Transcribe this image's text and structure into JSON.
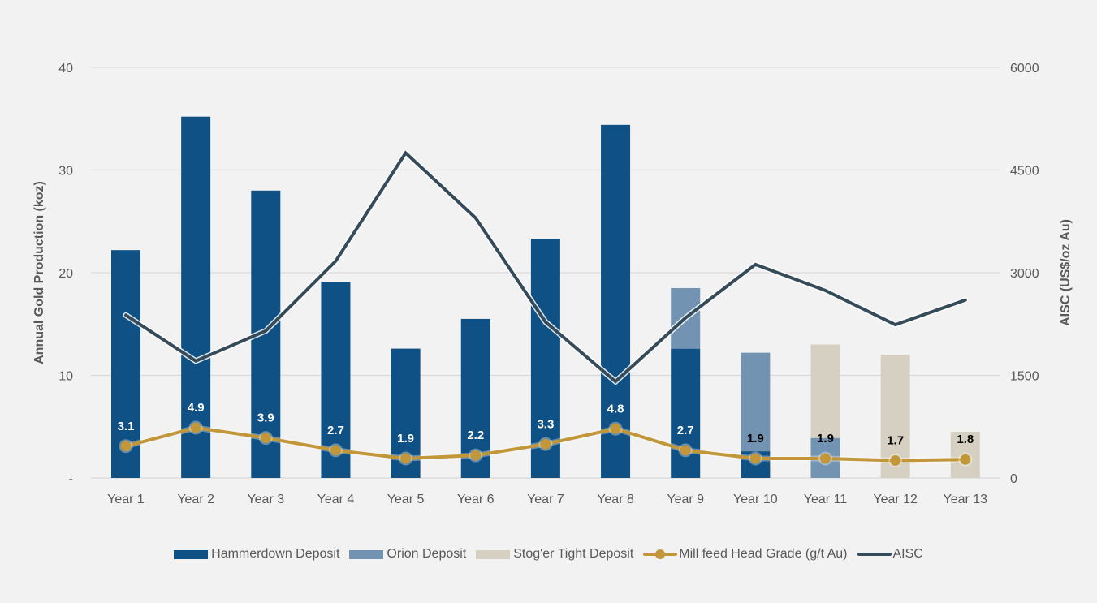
{
  "chart_data": {
    "type": "bar",
    "title": "",
    "categories": [
      "Year 1",
      "Year 2",
      "Year 3",
      "Year 4",
      "Year 5",
      "Year 6",
      "Year 7",
      "Year 8",
      "Year 9",
      "Year 10",
      "Year 11",
      "Year 12",
      "Year 13"
    ],
    "ylabel": "Annual Gold Production (koz)",
    "y2label": "AISC (US$/oz Au)",
    "ylim": [
      0,
      40
    ],
    "y2lim": [
      0,
      6000
    ],
    "yticks": [
      "-",
      "10",
      "20",
      "30",
      "40"
    ],
    "ytick_values": [
      0,
      10,
      20,
      30,
      40
    ],
    "y2ticks": [
      "0",
      "1500",
      "3000",
      "4500",
      "6000"
    ],
    "y2tick_values": [
      0,
      1500,
      3000,
      4500,
      6000
    ],
    "grid": true,
    "legend_position": "bottom",
    "series": [
      {
        "name": "Hammerdown Deposit",
        "type": "bar",
        "stacked": true,
        "axis": "left",
        "color": "#0f5085",
        "values": [
          22.2,
          35.2,
          28.0,
          19.1,
          12.6,
          15.5,
          23.3,
          34.4,
          12.6,
          2.6,
          0,
          0,
          0
        ]
      },
      {
        "name": "Orion Deposit",
        "type": "bar",
        "stacked": true,
        "axis": "left",
        "color": "#7393b3",
        "values": [
          0,
          0,
          0,
          0,
          0,
          0,
          0,
          0,
          5.9,
          9.6,
          3.9,
          0,
          0
        ]
      },
      {
        "name": "Stog'er Tight Deposit",
        "type": "bar",
        "stacked": true,
        "axis": "left",
        "color": "#d5d0c1",
        "values": [
          0,
          0,
          0,
          0,
          0,
          0,
          0,
          0,
          0,
          0,
          9.1,
          12.0,
          4.5
        ]
      },
      {
        "name": "Mill feed Head Grade (g/t Au)",
        "type": "line",
        "axis": "left",
        "color": "#c1973a",
        "values": [
          3.1,
          4.9,
          3.9,
          2.7,
          1.9,
          2.2,
          3.3,
          4.8,
          2.7,
          1.9,
          1.9,
          1.7,
          1.8
        ],
        "labels": [
          "3.1",
          "4.9",
          "3.9",
          "2.7",
          "1.9",
          "2.2",
          "3.3",
          "4.8",
          "2.7",
          "1.9",
          "1.9",
          "1.7",
          "1.8"
        ],
        "label_colors": [
          "#ffffff",
          "#ffffff",
          "#ffffff",
          "#ffffff",
          "#ffffff",
          "#ffffff",
          "#ffffff",
          "#ffffff",
          "#ffffff",
          "#000000",
          "#000000",
          "#000000",
          "#000000"
        ]
      },
      {
        "name": "AISC",
        "type": "line",
        "axis": "right",
        "color": "#364b5a",
        "values": [
          2380,
          1710,
          2150,
          3170,
          4750,
          3800,
          2280,
          1410,
          2340,
          3120,
          2740,
          2240,
          2600
        ]
      }
    ]
  },
  "legend": {
    "items": [
      {
        "label": "Hammerdown Deposit",
        "kind": "bar",
        "color": "#0f5085"
      },
      {
        "label": "Orion Deposit",
        "kind": "bar",
        "color": "#7393b3"
      },
      {
        "label": "Stog'er Tight Deposit",
        "kind": "bar",
        "color": "#d5d0c1"
      },
      {
        "label": "Mill feed Head Grade (g/t Au)",
        "kind": "line-marker",
        "color": "#c1973a"
      },
      {
        "label": "AISC",
        "kind": "line",
        "color": "#364b5a"
      }
    ]
  }
}
